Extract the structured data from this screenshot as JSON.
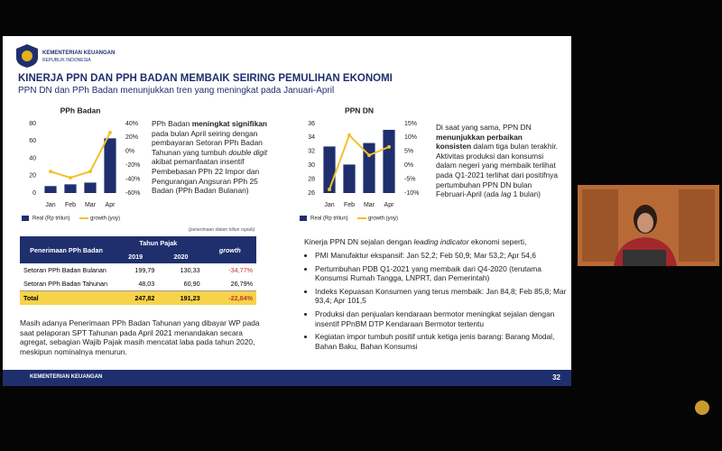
{
  "header": {
    "org": "KEMENTERIAN KEUANGAN",
    "sub": "REPUBLIK INDONESIA"
  },
  "slide": {
    "title": "KINERJA PPN DAN PPH BADAN MEMBAIK SEIRING PEMULIHAN EKONOMI",
    "subtitle": "PPN DN dan PPh Badan menunjukkan tren yang meningkat pada Januari-April"
  },
  "chart_data": [
    {
      "type": "bar-line",
      "title": "PPh Badan",
      "categories": [
        "Jan",
        "Feb",
        "Mar",
        "Apr"
      ],
      "series": [
        {
          "name": "Real (Rp triliun)",
          "color": "#1f2f6e",
          "values": [
            8,
            10,
            12,
            63
          ]
        },
        {
          "name": "growth (yoy)",
          "color": "#f2c12e",
          "values": [
            -29,
            -38,
            -29,
            27
          ],
          "axis": "y2"
        }
      ],
      "ylim": [
        0,
        80
      ],
      "yticks": [
        0,
        20,
        40,
        60,
        80
      ],
      "y2lim": [
        -60,
        40
      ],
      "y2ticks": [
        {
          "value": -60,
          "label": "-60%"
        },
        {
          "value": -40,
          "label": "-40%"
        },
        {
          "value": -20,
          "label": "-20%"
        },
        {
          "value": 0,
          "label": "0%"
        },
        {
          "value": 20,
          "label": "20%"
        },
        {
          "value": 40,
          "label": "40%"
        }
      ],
      "grid": false
    },
    {
      "type": "bar-line",
      "title": "PPN DN",
      "categories": [
        "Jan",
        "Feb",
        "Mar",
        "Apr"
      ],
      "series": [
        {
          "name": "Real (Rp triliun)",
          "color": "#1f2f6e",
          "values": [
            32.7,
            30.1,
            33.2,
            35.1
          ]
        },
        {
          "name": "growth (yoy)",
          "color": "#f2c12e",
          "values": [
            -8.7,
            10.8,
            3.6,
            6.6
          ],
          "axis": "y2"
        }
      ],
      "ylim": [
        26,
        36
      ],
      "yticks": [
        26,
        28,
        30,
        32,
        34,
        36
      ],
      "y2lim": [
        -10,
        15
      ],
      "y2ticks": [
        {
          "value": -10,
          "label": "-10%"
        },
        {
          "value": -5,
          "label": "-5%"
        },
        {
          "value": 0,
          "label": "0%"
        },
        {
          "value": 5,
          "label": "5%"
        },
        {
          "value": 10,
          "label": "10%"
        },
        {
          "value": 15,
          "label": "15%"
        }
      ],
      "grid": false
    }
  ],
  "left_text": [
    "PPh Badan ",
    "meningkat signifikan",
    " pada bulan April seiring dengan pembayaran Setoran PPh Badan Tahunan yang tumbuh ",
    "double digit",
    " akibat pemanfaatan insentif Pembebasan PPh 22 Impor dan Pengurangan Angsuran PPh 25 Badan (PPh Badan Bulanan)"
  ],
  "table_note": "(penerimaan dalam triliun rupiah)",
  "table": {
    "headers": [
      "Penerimaan PPh Badan",
      "Tahun Pajak",
      "2019",
      "2020",
      "growth"
    ],
    "rows": [
      [
        "Setoran PPh Badan Bulanan",
        "199,79",
        "130,33",
        "-34,77%"
      ],
      [
        "Setoran PPh Badan Tahunan",
        "48,03",
        "60,90",
        "26,79%"
      ],
      [
        "Total",
        "247,82",
        "191,23",
        "-22,84%"
      ]
    ]
  },
  "left_bottom": "Masih adanya Penerimaan PPh Badan Tahunan yang dibayar WP pada saat pelaporan SPT Tahunan pada April 2021 menandakan secara agregat, sebagian Wajib Pajak masih mencatat laba pada tahun 2020, meskipun nominalnya menurun.",
  "right_text": [
    "Di saat yang sama, PPN DN ",
    "menunjukkan perbaikan konsisten",
    " dalam tiga bulan terakhir. Aktivitas produksi dan konsumsi dalam negeri yang membaik terlihat pada Q1-2021 terlihat dari positifnya pertumbuhan PPN DN bulan Februari-April (ada ",
    "lag",
    " 1 bulan)"
  ],
  "intro": [
    "Kinerja PPN DN sejalan dengan ",
    "leading indicator",
    " ekonomi seperti,"
  ],
  "bullets": [
    "PMI Manufaktur ekspansif: Jan 52,2; Feb 50,9; Mar 53,2; Apr 54,6",
    "Pertumbuhan PDB Q1-2021 yang  membaik dari Q4-2020 (terutama Konsumsi Rumah Tangga, LNPRT, dan Pemerintah)",
    "Indeks Kepuasan Konsumen yang terus membaik: Jan 84,8; Feb 85,8; Mar 93,4; Apr 101,5",
    "Produksi dan penjualan kendaraan bermotor meningkat sejalan dengan insentif PPnBM DTP Kendaraan Bermotor tertentu",
    "Kegiatan impor tumbuh positif untuk ketiga jenis barang: Barang Modal, Bahan Baku, Bahan Konsumsi"
  ],
  "footer": {
    "org": "KEMENTERIAN KEUANGAN",
    "page": "32"
  }
}
